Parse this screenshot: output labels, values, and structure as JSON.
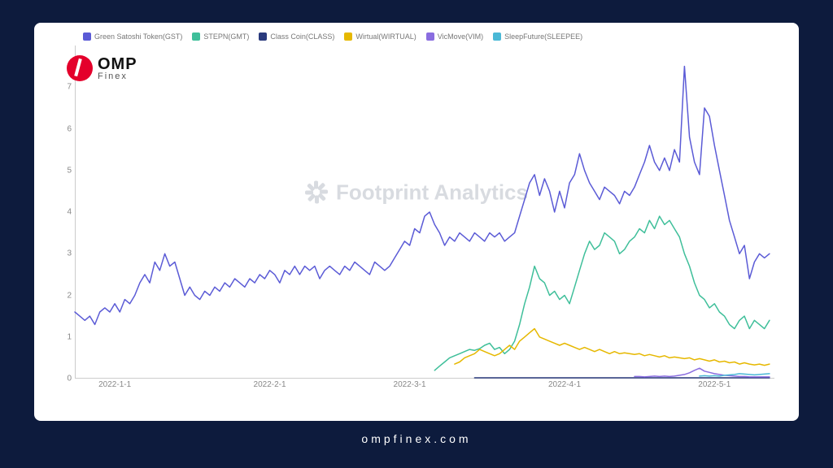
{
  "footer_text": "ompfinex.com",
  "logo": {
    "brand_top": "OMP",
    "brand_bottom": "Finex"
  },
  "watermark_text": "Footprint Analytics",
  "legend": [
    {
      "label": "Green Satoshi Token(GST)",
      "color": "#5b5bd6"
    },
    {
      "label": "STEPN(GMT)",
      "color": "#3fbf9a"
    },
    {
      "label": "Class Coin(CLASS)",
      "color": "#2a3a7d"
    },
    {
      "label": "Wirtual(WIRTUAL)",
      "color": "#e6b800"
    },
    {
      "label": "VicMove(VIM)",
      "color": "#8a6de0"
    },
    {
      "label": "SleepFuture(SLEEPEE)",
      "color": "#4ab8d6"
    }
  ],
  "chart": {
    "type": "line",
    "background_color": "#ffffff",
    "grid_color": "#eeeeee",
    "axis_color": "#cccccc",
    "tick_font_size": 10,
    "tick_color": "#888888",
    "line_width": 1.5,
    "ylim": [
      0,
      8
    ],
    "yticks": [
      0,
      1,
      2,
      3,
      4,
      5,
      6,
      7
    ],
    "x_range_days": 140,
    "xticks": [
      {
        "label": "2022-1-1",
        "t": 8
      },
      {
        "label": "2022-2-1",
        "t": 39
      },
      {
        "label": "2022-3-1",
        "t": 67
      },
      {
        "label": "2022-4-1",
        "t": 98
      },
      {
        "label": "2022-5-1",
        "t": 128
      }
    ],
    "series": [
      {
        "name": "Green Satoshi Token(GST)",
        "color": "#5b5bd6",
        "start_t": 0,
        "values": [
          1.6,
          1.5,
          1.4,
          1.5,
          1.3,
          1.6,
          1.7,
          1.6,
          1.8,
          1.6,
          1.9,
          1.8,
          2.0,
          2.3,
          2.5,
          2.3,
          2.8,
          2.6,
          3.0,
          2.7,
          2.8,
          2.4,
          2.0,
          2.2,
          2.0,
          1.9,
          2.1,
          2.0,
          2.2,
          2.1,
          2.3,
          2.2,
          2.4,
          2.3,
          2.2,
          2.4,
          2.3,
          2.5,
          2.4,
          2.6,
          2.5,
          2.3,
          2.6,
          2.5,
          2.7,
          2.5,
          2.7,
          2.6,
          2.7,
          2.4,
          2.6,
          2.7,
          2.6,
          2.5,
          2.7,
          2.6,
          2.8,
          2.7,
          2.6,
          2.5,
          2.8,
          2.7,
          2.6,
          2.7,
          2.9,
          3.1,
          3.3,
          3.2,
          3.6,
          3.5,
          3.9,
          4.0,
          3.7,
          3.5,
          3.2,
          3.4,
          3.3,
          3.5,
          3.4,
          3.3,
          3.5,
          3.4,
          3.3,
          3.5,
          3.4,
          3.5,
          3.3,
          3.4,
          3.5,
          3.9,
          4.3,
          4.7,
          4.9,
          4.4,
          4.8,
          4.5,
          4.0,
          4.5,
          4.1,
          4.7,
          4.9,
          5.4,
          5.0,
          4.7,
          4.5,
          4.3,
          4.6,
          4.5,
          4.4,
          4.2,
          4.5,
          4.4,
          4.6,
          4.9,
          5.2,
          5.6,
          5.2,
          5.0,
          5.3,
          5.0,
          5.5,
          5.2,
          7.5,
          5.8,
          5.2,
          4.9,
          6.5,
          6.3,
          5.6,
          5.0,
          4.4,
          3.8,
          3.4,
          3.0,
          3.2,
          2.4,
          2.8,
          3.0,
          2.9,
          3.0
        ]
      },
      {
        "name": "STEPN(GMT)",
        "color": "#3fbf9a",
        "start_t": 72,
        "values": [
          0.2,
          0.3,
          0.4,
          0.5,
          0.55,
          0.6,
          0.65,
          0.7,
          0.68,
          0.72,
          0.8,
          0.85,
          0.7,
          0.75,
          0.6,
          0.7,
          0.9,
          1.3,
          1.8,
          2.2,
          2.7,
          2.4,
          2.3,
          2.0,
          2.1,
          1.9,
          2.0,
          1.8,
          2.2,
          2.6,
          3.0,
          3.3,
          3.1,
          3.2,
          3.5,
          3.4,
          3.3,
          3.0,
          3.1,
          3.3,
          3.4,
          3.6,
          3.5,
          3.8,
          3.6,
          3.9,
          3.7,
          3.8,
          3.6,
          3.4,
          3.0,
          2.7,
          2.3,
          2.0,
          1.9,
          1.7,
          1.8,
          1.6,
          1.5,
          1.3,
          1.2,
          1.4,
          1.5,
          1.2,
          1.4,
          1.3,
          1.2,
          1.4
        ]
      },
      {
        "name": "Wirtual(WIRTUAL)",
        "color": "#e6b800",
        "start_t": 76,
        "values": [
          0.35,
          0.4,
          0.5,
          0.55,
          0.6,
          0.7,
          0.65,
          0.6,
          0.55,
          0.6,
          0.7,
          0.8,
          0.7,
          0.9,
          1.0,
          1.1,
          1.2,
          1.0,
          0.95,
          0.9,
          0.85,
          0.8,
          0.85,
          0.8,
          0.75,
          0.7,
          0.75,
          0.7,
          0.65,
          0.7,
          0.65,
          0.6,
          0.65,
          0.6,
          0.62,
          0.6,
          0.58,
          0.6,
          0.55,
          0.58,
          0.55,
          0.52,
          0.55,
          0.5,
          0.52,
          0.5,
          0.48,
          0.5,
          0.45,
          0.48,
          0.45,
          0.42,
          0.45,
          0.4,
          0.42,
          0.38,
          0.4,
          0.35,
          0.38,
          0.35,
          0.33,
          0.35,
          0.32,
          0.35
        ]
      },
      {
        "name": "Class Coin(CLASS)",
        "color": "#2a3a7d",
        "start_t": 80,
        "values": [
          0.02,
          0.02,
          0.02,
          0.02,
          0.02,
          0.02,
          0.02,
          0.02,
          0.02,
          0.02,
          0.02,
          0.02,
          0.02,
          0.02,
          0.02,
          0.02,
          0.02,
          0.02,
          0.02,
          0.02,
          0.02,
          0.02,
          0.02,
          0.02,
          0.02,
          0.02,
          0.02,
          0.02,
          0.02,
          0.02,
          0.02,
          0.02,
          0.02,
          0.02,
          0.02,
          0.02,
          0.02,
          0.02,
          0.02,
          0.02,
          0.02,
          0.02,
          0.02,
          0.02,
          0.02,
          0.02,
          0.02,
          0.02,
          0.02,
          0.02,
          0.02,
          0.02,
          0.02,
          0.02,
          0.02,
          0.02,
          0.02,
          0.02,
          0.02,
          0.02
        ]
      },
      {
        "name": "VicMove(VIM)",
        "color": "#8a6de0",
        "start_t": 112,
        "values": [
          0.05,
          0.05,
          0.04,
          0.05,
          0.06,
          0.05,
          0.06,
          0.05,
          0.06,
          0.08,
          0.1,
          0.14,
          0.2,
          0.25,
          0.18,
          0.15,
          0.12,
          0.1,
          0.08,
          0.07,
          0.06,
          0.05,
          0.05,
          0.04,
          0.04,
          0.04,
          0.04,
          0.04
        ]
      },
      {
        "name": "SleepFuture(SLEEPEE)",
        "color": "#4ab8d6",
        "start_t": 125,
        "values": [
          0.06,
          0.07,
          0.06,
          0.07,
          0.06,
          0.08,
          0.09,
          0.1,
          0.12,
          0.11,
          0.1,
          0.09,
          0.1,
          0.11,
          0.12
        ]
      }
    ]
  }
}
